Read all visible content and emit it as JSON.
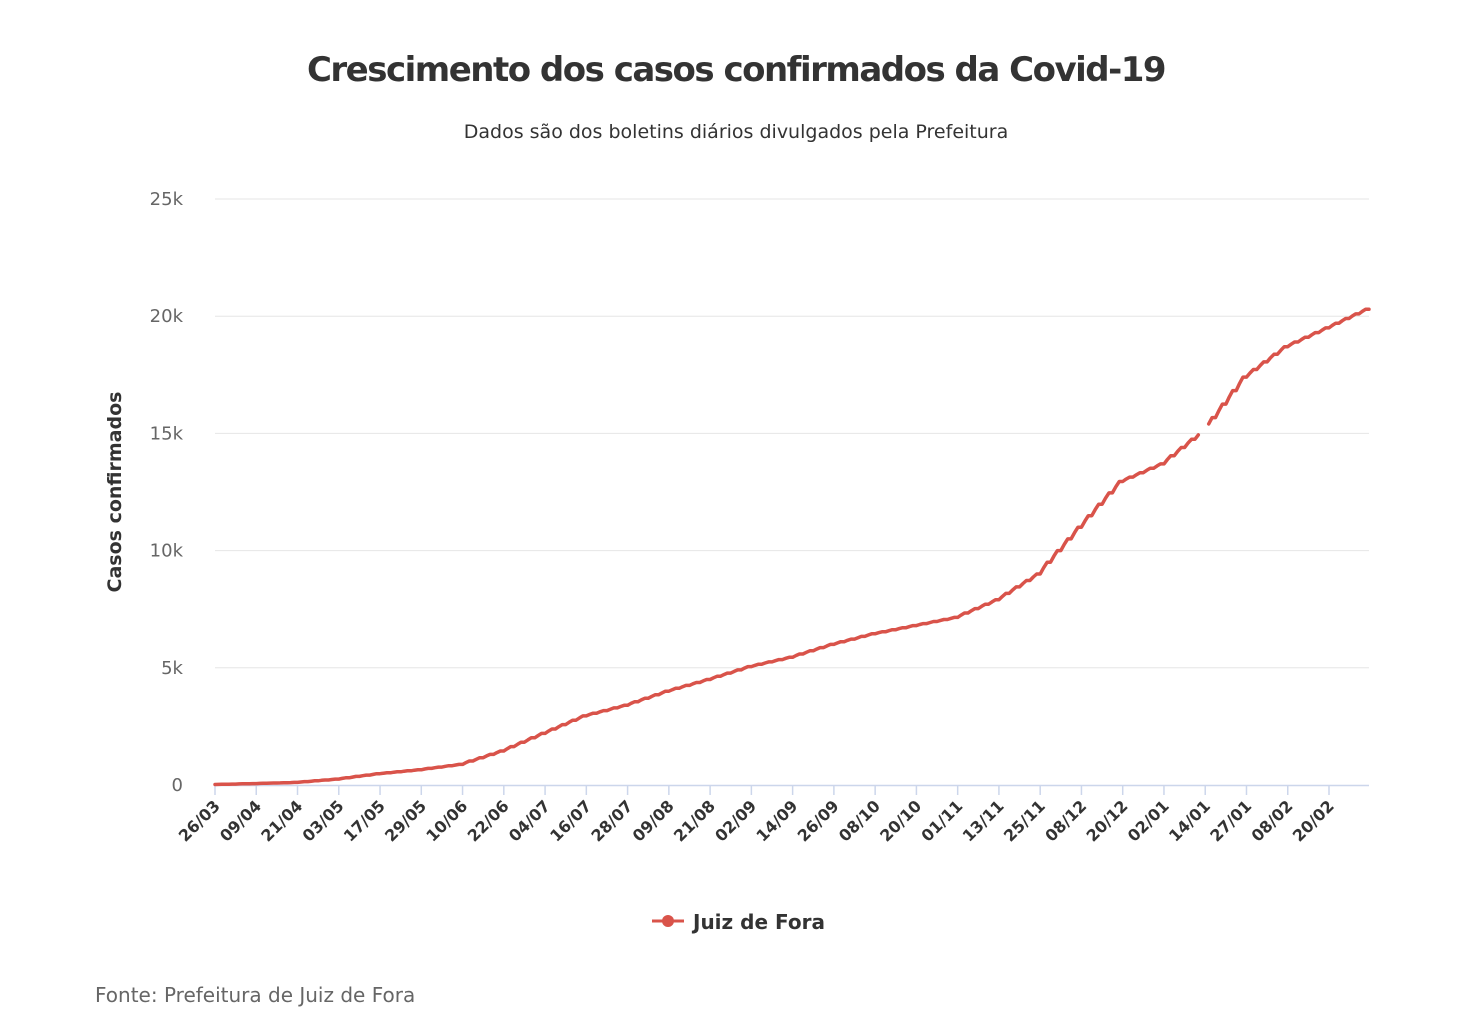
{
  "chart_data": {
    "type": "line",
    "title": "Crescimento dos casos confirmados da Covid-19",
    "subtitle": "Dados são dos boletins diários divulgados pela Prefeitura",
    "source": "Fonte: Prefeitura de Juiz de Fora",
    "xlabel": "",
    "ylabel": "Casos confirmados",
    "ylim": [
      0,
      25000
    ],
    "yticks": [
      0,
      5000,
      10000,
      15000,
      20000,
      25000
    ],
    "ytick_labels": [
      "0",
      "5k",
      "10k",
      "15k",
      "20k",
      "25k"
    ],
    "grid": true,
    "legend_position": "bottom-center",
    "color": "#d9534a",
    "x_tick_labels": [
      "26/03",
      "09/04",
      "21/04",
      "03/05",
      "17/05",
      "29/05",
      "10/06",
      "22/06",
      "04/07",
      "16/07",
      "28/07",
      "09/08",
      "21/08",
      "02/09",
      "14/09",
      "26/09",
      "08/10",
      "20/10",
      "01/11",
      "13/11",
      "25/11",
      "08/12",
      "20/12",
      "02/01",
      "14/01",
      "27/01",
      "08/02",
      "20/02"
    ],
    "points_per_tick": 12,
    "series": [
      {
        "name": "Juiz de Fora",
        "sampled_at_ticks": [
          20,
          60,
          110,
          250,
          480,
          650,
          880,
          1450,
          2200,
          2950,
          3400,
          4000,
          4500,
          5050,
          5450,
          6000,
          6450,
          6800,
          7150,
          7900,
          9000,
          11000,
          12950,
          13700,
          15100,
          17400,
          18700,
          19500
        ],
        "last_value": 20300,
        "gap_near_tick": "14/01"
      }
    ]
  }
}
